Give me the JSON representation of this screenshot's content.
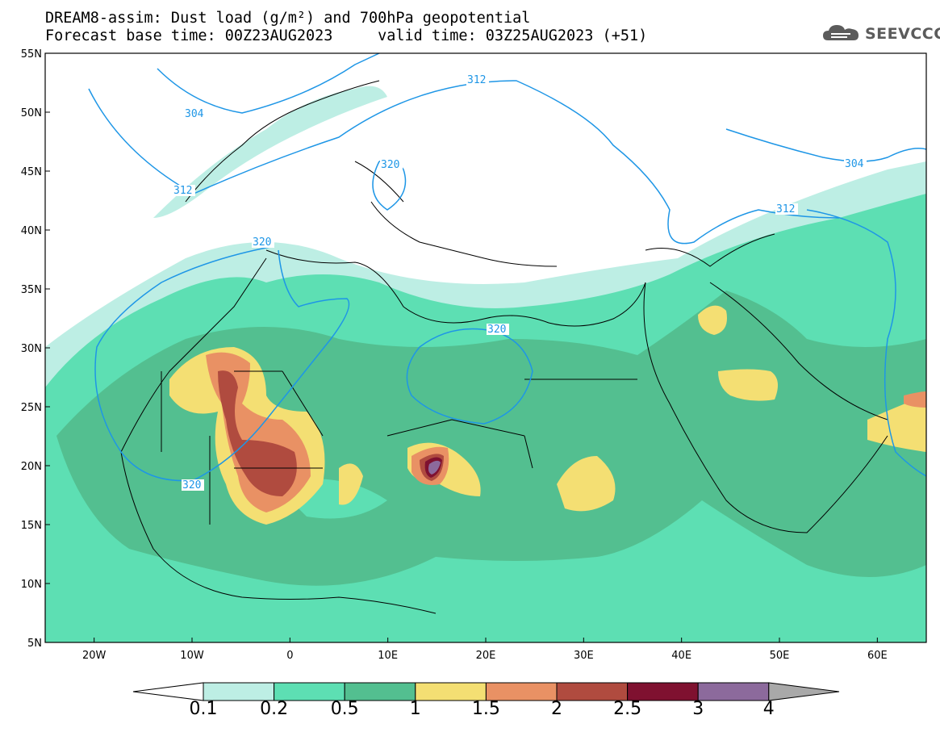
{
  "title": {
    "line1": "DREAM8-assim: Dust load (g/m²) and 700hPa geopotential",
    "line2": "Forecast base time: 00Z23AUG2023     valid time: 03Z25AUG2023 (+51)"
  },
  "logo": {
    "text": "SEEVCCC",
    "icon": "cloud-icon"
  },
  "map": {
    "lat_range": [
      5,
      55
    ],
    "lon_range": [
      -25,
      65
    ],
    "lat_labels": [
      "55N",
      "50N",
      "45N",
      "40N",
      "35N",
      "30N",
      "25N",
      "20N",
      "15N",
      "10N",
      "5N"
    ],
    "lon_labels": [
      "20W",
      "10W",
      "0",
      "10E",
      "20E",
      "30E",
      "40E",
      "50E",
      "60E"
    ],
    "contour_labels": [
      "304",
      "312",
      "320",
      "320",
      "320",
      "312",
      "320",
      "312",
      "304"
    ],
    "colors": {
      "0.1": "#bdeee4",
      "0.2": "#5ddfb3",
      "0.5": "#53bf90",
      "1": "#f4df73",
      "1.5": "#e99164",
      "2": "#b04b3f",
      "2.5": "#7f1130",
      "3": "#8c6a9c",
      "4": "#a9a9a9",
      "contour": "#1e96e6",
      "border": "#000000"
    }
  },
  "legend": {
    "labels": [
      "0.1",
      "0.2",
      "0.5",
      "1",
      "1.5",
      "2",
      "2.5",
      "3",
      "4"
    ],
    "colors": [
      "#bdeee4",
      "#5ddfb3",
      "#53bf90",
      "#f4df73",
      "#e99164",
      "#b04b3f",
      "#7f1130",
      "#8c6a9c"
    ]
  }
}
